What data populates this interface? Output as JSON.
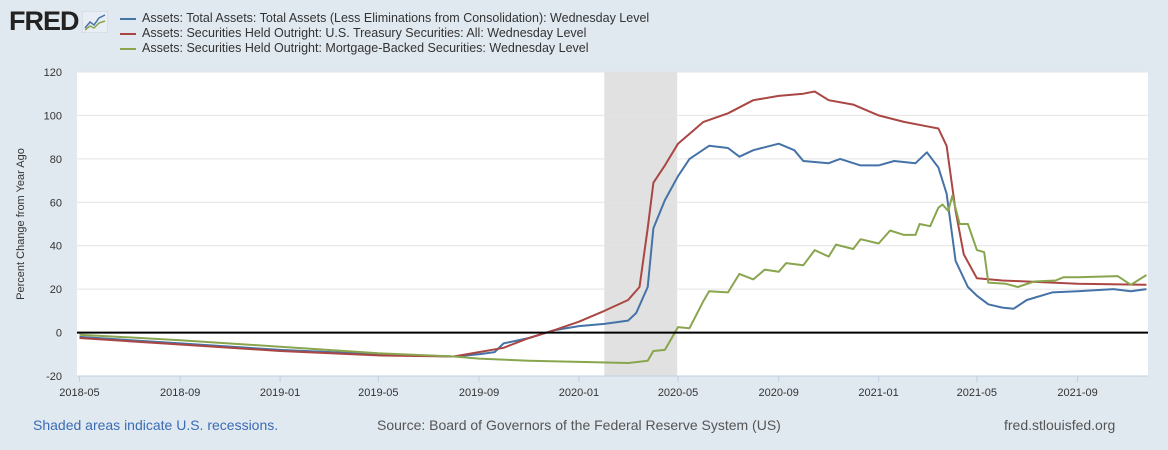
{
  "logo": {
    "text": "FRED"
  },
  "footer": {
    "recession_note": "Shaded areas indicate U.S. recessions.",
    "source": "Source: Board of Governors of the Federal Reserve System (US)",
    "site": "fred.stlouisfed.org"
  },
  "chart_data": {
    "type": "line",
    "title": "",
    "xlabel": "",
    "ylabel": "Percent Change from Year Ago",
    "xlim": [
      "2018-04-28",
      "2021-11-26"
    ],
    "ylim": [
      -20,
      120
    ],
    "yticks": [
      -20,
      0,
      20,
      40,
      60,
      80,
      100,
      120
    ],
    "xticks": [
      "2018-05",
      "2018-09",
      "2019-01",
      "2019-05",
      "2019-09",
      "2020-01",
      "2020-05",
      "2020-09",
      "2021-01",
      "2021-05",
      "2021-09"
    ],
    "grid": true,
    "legend": "top-left",
    "recessions": [
      [
        "2020-02-01",
        "2020-04-30"
      ]
    ],
    "series": [
      {
        "name": "Assets: Total Assets: Total Assets (Less Eliminations from Consolidation): Wednesday Level",
        "color": "#4572a7",
        "points": [
          [
            "2018-05-01",
            -2
          ],
          [
            "2018-09-01",
            -5
          ],
          [
            "2019-01-01",
            -8
          ],
          [
            "2019-05-01",
            -10
          ],
          [
            "2019-08-01",
            -11
          ],
          [
            "2019-09-01",
            -10
          ],
          [
            "2019-09-20",
            -9
          ],
          [
            "2019-10-01",
            -5
          ],
          [
            "2019-11-01",
            -2.5
          ],
          [
            "2019-12-01",
            1
          ],
          [
            "2020-01-01",
            3
          ],
          [
            "2020-02-01",
            4
          ],
          [
            "2020-03-01",
            5.5
          ],
          [
            "2020-03-11",
            9
          ],
          [
            "2020-03-25",
            21
          ],
          [
            "2020-04-01",
            48
          ],
          [
            "2020-04-15",
            61
          ],
          [
            "2020-05-01",
            72
          ],
          [
            "2020-05-15",
            80
          ],
          [
            "2020-06-08",
            86
          ],
          [
            "2020-07-01",
            85
          ],
          [
            "2020-07-15",
            81
          ],
          [
            "2020-08-01",
            84
          ],
          [
            "2020-09-01",
            87
          ],
          [
            "2020-09-20",
            84
          ],
          [
            "2020-10-01",
            79
          ],
          [
            "2020-11-01",
            78
          ],
          [
            "2020-11-15",
            80
          ],
          [
            "2020-12-10",
            77
          ],
          [
            "2021-01-01",
            77
          ],
          [
            "2021-01-20",
            79
          ],
          [
            "2021-02-15",
            78
          ],
          [
            "2021-03-01",
            83
          ],
          [
            "2021-03-15",
            76
          ],
          [
            "2021-03-25",
            64
          ],
          [
            "2021-04-05",
            33
          ],
          [
            "2021-04-20",
            21
          ],
          [
            "2021-05-01",
            17
          ],
          [
            "2021-05-15",
            13
          ],
          [
            "2021-06-01",
            11.5
          ],
          [
            "2021-06-15",
            11
          ],
          [
            "2021-07-01",
            15
          ],
          [
            "2021-08-01",
            18.5
          ],
          [
            "2021-09-01",
            19
          ],
          [
            "2021-10-15",
            20
          ],
          [
            "2021-11-05",
            19
          ],
          [
            "2021-11-24",
            20
          ]
        ]
      },
      {
        "name": "Assets: Securities Held Outright: U.S. Treasury Securities: All: Wednesday Level",
        "color": "#aa4643",
        "points": [
          [
            "2018-05-01",
            -2.5
          ],
          [
            "2018-09-01",
            -5.5
          ],
          [
            "2019-01-01",
            -8.5
          ],
          [
            "2019-05-01",
            -10.5
          ],
          [
            "2019-08-01",
            -11
          ],
          [
            "2019-09-01",
            -9
          ],
          [
            "2019-10-01",
            -7
          ],
          [
            "2019-11-01",
            -2.5
          ],
          [
            "2019-12-01",
            1
          ],
          [
            "2020-01-01",
            5
          ],
          [
            "2020-02-01",
            10
          ],
          [
            "2020-03-01",
            15
          ],
          [
            "2020-03-15",
            21
          ],
          [
            "2020-03-25",
            48
          ],
          [
            "2020-04-01",
            69
          ],
          [
            "2020-04-15",
            77
          ],
          [
            "2020-05-01",
            87
          ],
          [
            "2020-06-01",
            97
          ],
          [
            "2020-07-01",
            101
          ],
          [
            "2020-08-01",
            107
          ],
          [
            "2020-09-01",
            109
          ],
          [
            "2020-10-01",
            110
          ],
          [
            "2020-10-15",
            111
          ],
          [
            "2020-11-01",
            107
          ],
          [
            "2020-12-01",
            105
          ],
          [
            "2021-01-01",
            100
          ],
          [
            "2021-02-01",
            97
          ],
          [
            "2021-03-01",
            95
          ],
          [
            "2021-03-15",
            94
          ],
          [
            "2021-03-25",
            86
          ],
          [
            "2021-04-05",
            56
          ],
          [
            "2021-04-15",
            36
          ],
          [
            "2021-05-01",
            25
          ],
          [
            "2021-06-01",
            24
          ],
          [
            "2021-07-01",
            23.5
          ],
          [
            "2021-09-01",
            22.5
          ],
          [
            "2021-11-24",
            22
          ]
        ]
      },
      {
        "name": "Assets: Securities Held Outright: Mortgage-Backed Securities: Wednesday Level",
        "color": "#89a54e",
        "points": [
          [
            "2018-05-01",
            -1
          ],
          [
            "2018-09-01",
            -3.5
          ],
          [
            "2019-01-01",
            -6.5
          ],
          [
            "2019-05-01",
            -9.5
          ],
          [
            "2019-08-01",
            -11
          ],
          [
            "2019-09-01",
            -12
          ],
          [
            "2019-11-01",
            -13
          ],
          [
            "2020-01-01",
            -13.5
          ],
          [
            "2020-03-01",
            -14
          ],
          [
            "2020-03-25",
            -13
          ],
          [
            "2020-04-01",
            -8.5
          ],
          [
            "2020-04-15",
            -8
          ],
          [
            "2020-05-01",
            2.5
          ],
          [
            "2020-05-15",
            2
          ],
          [
            "2020-06-01",
            14.5
          ],
          [
            "2020-06-08",
            19
          ],
          [
            "2020-07-01",
            18.5
          ],
          [
            "2020-07-15",
            27
          ],
          [
            "2020-08-01",
            24.5
          ],
          [
            "2020-08-15",
            29
          ],
          [
            "2020-09-01",
            28
          ],
          [
            "2020-09-10",
            32
          ],
          [
            "2020-10-01",
            31
          ],
          [
            "2020-10-15",
            38
          ],
          [
            "2020-11-01",
            35
          ],
          [
            "2020-11-10",
            40.5
          ],
          [
            "2020-12-01",
            38.5
          ],
          [
            "2020-12-10",
            43
          ],
          [
            "2021-01-01",
            41
          ],
          [
            "2021-01-15",
            47
          ],
          [
            "2021-02-01",
            45
          ],
          [
            "2021-02-15",
            45
          ],
          [
            "2021-02-20",
            50
          ],
          [
            "2021-03-05",
            49
          ],
          [
            "2021-03-15",
            57.5
          ],
          [
            "2021-03-20",
            59
          ],
          [
            "2021-03-27",
            56
          ],
          [
            "2021-04-01",
            63
          ],
          [
            "2021-04-10",
            50
          ],
          [
            "2021-04-20",
            50
          ],
          [
            "2021-05-01",
            38
          ],
          [
            "2021-05-10",
            37
          ],
          [
            "2021-05-15",
            23
          ],
          [
            "2021-06-05",
            22.5
          ],
          [
            "2021-06-20",
            21
          ],
          [
            "2021-07-10",
            23.5
          ],
          [
            "2021-08-05",
            24
          ],
          [
            "2021-08-15",
            25.5
          ],
          [
            "2021-09-01",
            25.5
          ],
          [
            "2021-10-20",
            26
          ],
          [
            "2021-11-05",
            22
          ],
          [
            "2021-11-24",
            26.5
          ]
        ]
      }
    ]
  }
}
